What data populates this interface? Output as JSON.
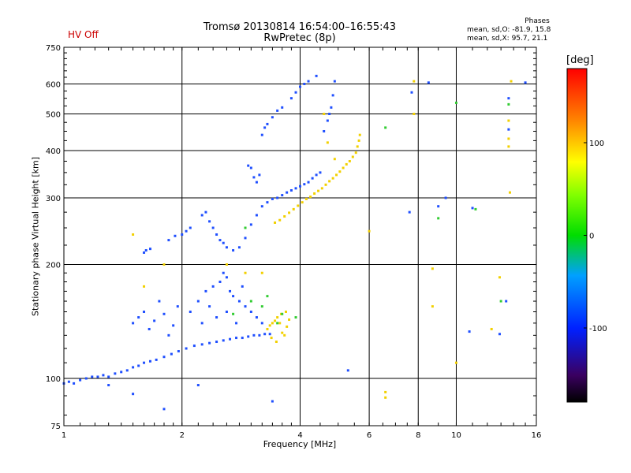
{
  "header": {
    "hv_status": "HV Off",
    "title_line1": "Tromsø 20130814 16:54:00–16:55:43",
    "title_line2": "RwPretec (8p)",
    "phase_heading": "Phases",
    "phase_stat_o": "mean, sd,O: -81.9, 15.8",
    "phase_stat_x": "mean, sd,X:  95.7, 21.1"
  },
  "colors": {
    "background": "#ffffff",
    "axis": "#000000",
    "hv_status": "#cc0000"
  },
  "chart_data": {
    "type": "scatter",
    "title": "Tromsø 20130814 16:54:00–16:55:43",
    "subtitle": "RwPretec (8p)",
    "xlabel": "Frequency [MHz]",
    "ylabel": "Stationary phase Virtual Height [km]",
    "x_scale": "log",
    "y_scale": "log",
    "xlim": [
      1,
      16
    ],
    "ylim": [
      75,
      750
    ],
    "x_ticks": [
      1,
      2,
      4,
      8,
      16
    ],
    "x_tick_labels": [
      "1",
      "2",
      "4",
      "8",
      "16"
    ],
    "x_minor_ticks": [
      6,
      10
    ],
    "x_minor_tick_labels": [
      "6",
      "10"
    ],
    "y_ticks": [
      75,
      100,
      200,
      300,
      400,
      500,
      600,
      750
    ],
    "y_tick_labels": [
      "75",
      "100",
      "200",
      "300",
      "400",
      "500",
      "600",
      "750"
    ],
    "grid": true,
    "colorbar": {
      "label": "[deg]",
      "range": [
        -180,
        180
      ],
      "ticks": [
        -100,
        0,
        100
      ],
      "tick_labels": [
        "-100",
        "0",
        "100"
      ],
      "colormap": "rainbow"
    },
    "series": [
      {
        "description": "O-mode E/F traces (blue)",
        "color": "#1f4fff",
        "points": [
          [
            1.0,
            97
          ],
          [
            1.03,
            98
          ],
          [
            1.06,
            97
          ],
          [
            1.1,
            99
          ],
          [
            1.14,
            100
          ],
          [
            1.18,
            101
          ],
          [
            1.22,
            101
          ],
          [
            1.26,
            102
          ],
          [
            1.3,
            101
          ],
          [
            1.35,
            103
          ],
          [
            1.4,
            104
          ],
          [
            1.45,
            105
          ],
          [
            1.5,
            107
          ],
          [
            1.55,
            108
          ],
          [
            1.6,
            110
          ],
          [
            1.66,
            111
          ],
          [
            1.72,
            112
          ],
          [
            1.8,
            114
          ],
          [
            1.88,
            116
          ],
          [
            1.96,
            118
          ],
          [
            2.05,
            120
          ],
          [
            2.15,
            122
          ],
          [
            2.25,
            123
          ],
          [
            2.35,
            124
          ],
          [
            2.45,
            125
          ],
          [
            2.55,
            126
          ],
          [
            2.65,
            127
          ],
          [
            2.75,
            128
          ],
          [
            2.85,
            128
          ],
          [
            2.95,
            129
          ],
          [
            3.05,
            130
          ],
          [
            3.15,
            130
          ],
          [
            3.25,
            131
          ],
          [
            3.35,
            131
          ],
          [
            1.5,
            140
          ],
          [
            1.55,
            145
          ],
          [
            1.6,
            150
          ],
          [
            1.65,
            135
          ],
          [
            1.7,
            142
          ],
          [
            1.75,
            160
          ],
          [
            1.8,
            148
          ],
          [
            1.85,
            130
          ],
          [
            1.9,
            138
          ],
          [
            1.95,
            155
          ],
          [
            2.1,
            150
          ],
          [
            2.2,
            160
          ],
          [
            2.3,
            170
          ],
          [
            2.4,
            175
          ],
          [
            2.5,
            180
          ],
          [
            2.55,
            190
          ],
          [
            2.6,
            185
          ],
          [
            2.65,
            170
          ],
          [
            2.7,
            165
          ],
          [
            2.8,
            160
          ],
          [
            2.9,
            155
          ],
          [
            3.0,
            150
          ],
          [
            3.1,
            145
          ],
          [
            3.2,
            140
          ],
          [
            2.45,
            145
          ],
          [
            2.35,
            155
          ],
          [
            2.25,
            140
          ],
          [
            2.6,
            150
          ],
          [
            2.75,
            140
          ],
          [
            2.85,
            175
          ],
          [
            1.6,
            215
          ],
          [
            1.62,
            218
          ],
          [
            1.66,
            220
          ],
          [
            1.85,
            232
          ],
          [
            1.92,
            238
          ],
          [
            2.0,
            240
          ],
          [
            2.05,
            245
          ],
          [
            2.1,
            250
          ],
          [
            2.25,
            270
          ],
          [
            2.3,
            275
          ],
          [
            2.35,
            260
          ],
          [
            2.4,
            250
          ],
          [
            2.45,
            240
          ],
          [
            2.5,
            232
          ],
          [
            2.55,
            228
          ],
          [
            2.6,
            222
          ],
          [
            2.7,
            218
          ],
          [
            2.8,
            222
          ],
          [
            2.9,
            235
          ],
          [
            3.0,
            255
          ],
          [
            3.1,
            270
          ],
          [
            3.2,
            285
          ],
          [
            3.3,
            292
          ],
          [
            3.4,
            298
          ],
          [
            3.5,
            300
          ],
          [
            3.6,
            305
          ],
          [
            3.7,
            310
          ],
          [
            3.8,
            314
          ],
          [
            3.9,
            318
          ],
          [
            4.0,
            322
          ],
          [
            4.1,
            326
          ],
          [
            4.2,
            330
          ],
          [
            4.3,
            338
          ],
          [
            4.4,
            345
          ],
          [
            4.5,
            350
          ],
          [
            2.95,
            365
          ],
          [
            3.0,
            360
          ],
          [
            3.05,
            340
          ],
          [
            3.1,
            330
          ],
          [
            3.15,
            345
          ],
          [
            3.2,
            440
          ],
          [
            3.25,
            460
          ],
          [
            3.3,
            470
          ],
          [
            3.4,
            490
          ],
          [
            3.5,
            510
          ],
          [
            3.6,
            520
          ],
          [
            3.8,
            550
          ],
          [
            3.9,
            570
          ],
          [
            4.0,
            590
          ],
          [
            4.1,
            600
          ],
          [
            4.2,
            610
          ],
          [
            4.4,
            630
          ],
          [
            4.6,
            450
          ],
          [
            4.7,
            480
          ],
          [
            4.75,
            500
          ],
          [
            4.8,
            520
          ],
          [
            4.85,
            560
          ],
          [
            4.9,
            610
          ],
          [
            1.5,
            91
          ],
          [
            1.3,
            96
          ],
          [
            1.8,
            83
          ],
          [
            2.2,
            96
          ],
          [
            3.4,
            87
          ],
          [
            5.3,
            105
          ],
          [
            7.7,
            570
          ],
          [
            7.6,
            275
          ],
          [
            9.0,
            285
          ],
          [
            9.4,
            300
          ],
          [
            8.5,
            605
          ],
          [
            11.0,
            282
          ],
          [
            10.8,
            133
          ],
          [
            12.9,
            131
          ],
          [
            13.4,
            160
          ],
          [
            13.6,
            550
          ],
          [
            13.6,
            455
          ],
          [
            15.0,
            605
          ]
        ]
      },
      {
        "description": "X-mode traces (yellow/orange)",
        "color": "#f2d000",
        "points": [
          [
            3.45,
            258
          ],
          [
            3.55,
            262
          ],
          [
            3.65,
            268
          ],
          [
            3.75,
            274
          ],
          [
            3.85,
            280
          ],
          [
            3.95,
            286
          ],
          [
            4.05,
            292
          ],
          [
            4.15,
            298
          ],
          [
            4.25,
            302
          ],
          [
            4.35,
            308
          ],
          [
            4.45,
            313
          ],
          [
            4.55,
            318
          ],
          [
            4.65,
            325
          ],
          [
            4.75,
            332
          ],
          [
            4.85,
            338
          ],
          [
            4.95,
            345
          ],
          [
            5.05,
            352
          ],
          [
            5.15,
            360
          ],
          [
            5.25,
            368
          ],
          [
            5.35,
            375
          ],
          [
            5.45,
            385
          ],
          [
            5.55,
            395
          ],
          [
            5.6,
            410
          ],
          [
            5.65,
            425
          ],
          [
            5.68,
            440
          ],
          [
            3.3,
            135
          ],
          [
            3.35,
            138
          ],
          [
            3.4,
            140
          ],
          [
            3.45,
            142
          ],
          [
            3.5,
            145
          ],
          [
            3.55,
            140
          ],
          [
            3.6,
            132
          ],
          [
            3.65,
            130
          ],
          [
            3.7,
            137
          ],
          [
            3.75,
            143
          ],
          [
            3.38,
            128
          ],
          [
            3.48,
            125
          ],
          [
            3.58,
            148
          ],
          [
            3.68,
            150
          ],
          [
            1.5,
            240
          ],
          [
            1.6,
            175
          ],
          [
            1.8,
            200
          ],
          [
            2.6,
            200
          ],
          [
            2.9,
            190
          ],
          [
            3.2,
            190
          ],
          [
            4.6,
            500
          ],
          [
            4.7,
            420
          ],
          [
            4.9,
            380
          ],
          [
            6.0,
            245
          ],
          [
            6.6,
            92
          ],
          [
            6.6,
            89
          ],
          [
            7.8,
            610
          ],
          [
            7.8,
            500
          ],
          [
            8.7,
            195
          ],
          [
            8.7,
            155
          ],
          [
            10.0,
            110
          ],
          [
            12.3,
            135
          ],
          [
            12.9,
            185
          ],
          [
            13.6,
            480
          ],
          [
            13.6,
            430
          ],
          [
            13.6,
            410
          ],
          [
            13.8,
            610
          ],
          [
            13.7,
            310
          ]
        ]
      },
      {
        "description": "Mixed-phase scattered points (green/cyan/red)",
        "color": "#33cc33",
        "points": [
          [
            2.7,
            148
          ],
          [
            3.0,
            160
          ],
          [
            3.2,
            155
          ],
          [
            3.6,
            148
          ],
          [
            3.9,
            145
          ],
          [
            6.6,
            460
          ],
          [
            9.0,
            265
          ],
          [
            10.0,
            535
          ],
          [
            13.6,
            530
          ],
          [
            2.9,
            250
          ],
          [
            3.5,
            140
          ],
          [
            3.3,
            165
          ],
          [
            11.2,
            280
          ],
          [
            13.0,
            160
          ]
        ]
      }
    ]
  }
}
